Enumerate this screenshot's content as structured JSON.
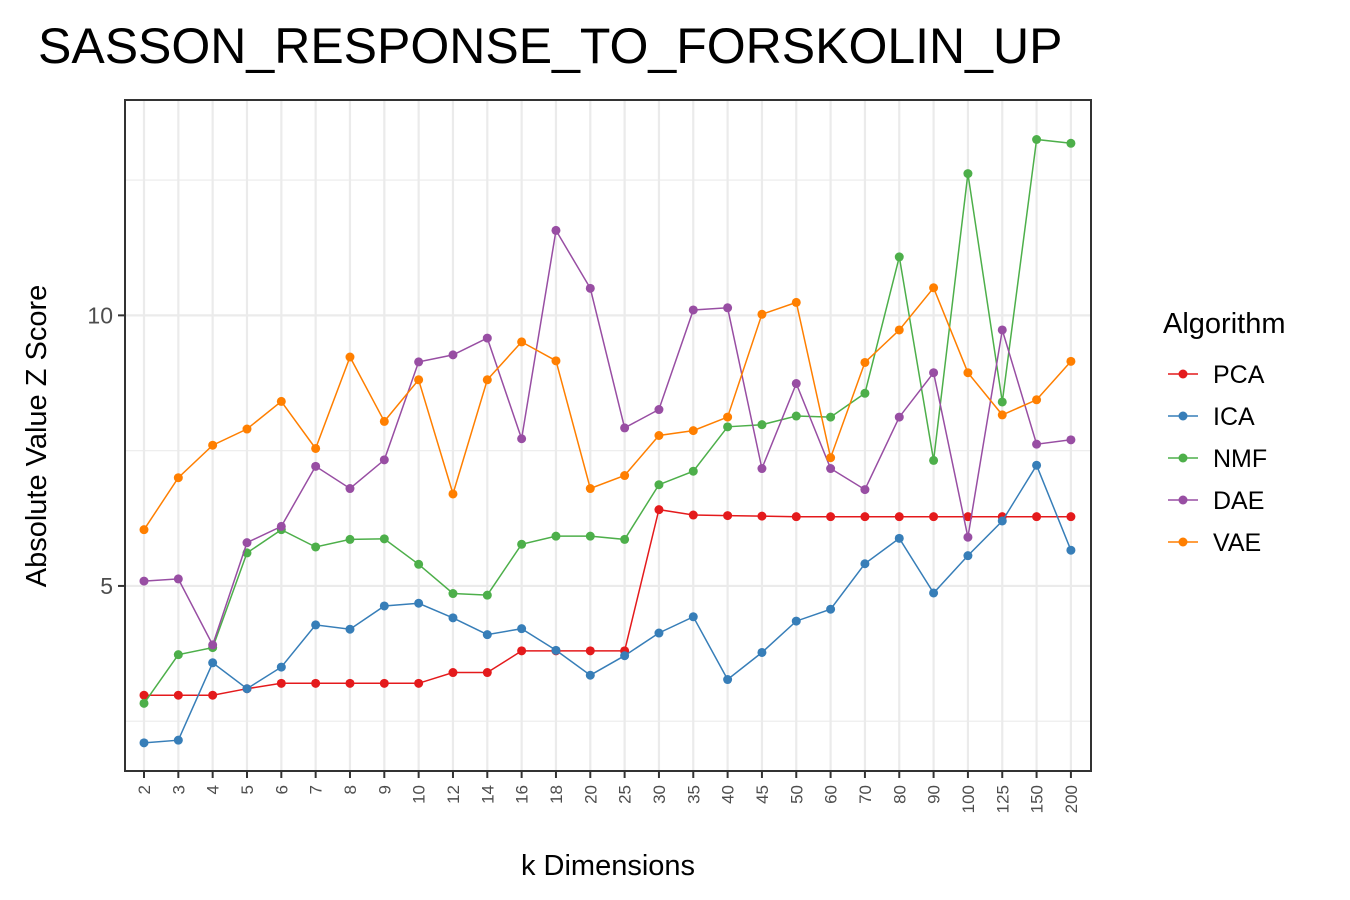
{
  "chart_data": {
    "type": "line",
    "title": "SASSON_RESPONSE_TO_FORSKOLIN_UP",
    "xlabel": "k Dimensions",
    "ylabel": "Absolute Value Z Score",
    "categories": [
      "2",
      "3",
      "4",
      "5",
      "6",
      "7",
      "8",
      "9",
      "10",
      "12",
      "14",
      "16",
      "18",
      "20",
      "25",
      "30",
      "35",
      "40",
      "45",
      "50",
      "60",
      "70",
      "80",
      "90",
      "100",
      "125",
      "150",
      "200"
    ],
    "y_ticks": [
      5,
      10
    ],
    "ylim": [
      1.58,
      13.98
    ],
    "grid": true,
    "legend": {
      "title": "Algorithm",
      "position": "right"
    },
    "series": [
      {
        "name": "PCA",
        "color": "#e41a1c",
        "values": [
          2.98,
          2.98,
          2.98,
          3.1,
          3.2,
          3.2,
          3.2,
          3.2,
          3.2,
          3.4,
          3.4,
          3.8,
          3.8,
          3.8,
          3.8,
          6.41,
          6.31,
          6.3,
          6.29,
          6.28,
          6.28,
          6.28,
          6.28,
          6.28,
          6.28,
          6.28,
          6.28,
          6.28
        ]
      },
      {
        "name": "ICA",
        "color": "#377eb8",
        "values": [
          2.1,
          2.15,
          3.58,
          3.1,
          3.5,
          4.28,
          4.2,
          4.63,
          4.68,
          4.41,
          4.1,
          4.21,
          3.81,
          3.35,
          3.71,
          4.13,
          4.43,
          3.27,
          3.77,
          4.35,
          4.57,
          5.41,
          5.88,
          4.87,
          5.56,
          6.2,
          7.23,
          5.66
        ]
      },
      {
        "name": "NMF",
        "color": "#4daf4a",
        "values": [
          2.83,
          3.73,
          3.86,
          5.61,
          6.04,
          5.72,
          5.86,
          5.87,
          5.4,
          4.86,
          4.83,
          5.77,
          5.92,
          5.92,
          5.86,
          6.87,
          7.12,
          7.94,
          7.98,
          8.14,
          8.12,
          8.56,
          11.08,
          7.32,
          12.62,
          8.4,
          13.25,
          13.18
        ]
      },
      {
        "name": "DAE",
        "color": "#984ea3",
        "values": [
          5.09,
          5.13,
          3.91,
          5.8,
          6.1,
          7.21,
          6.8,
          7.33,
          9.14,
          9.27,
          9.58,
          7.72,
          11.57,
          10.5,
          7.92,
          8.26,
          10.1,
          10.14,
          7.17,
          8.74,
          7.17,
          6.78,
          8.12,
          8.94,
          5.9,
          9.73,
          7.62,
          7.7
        ]
      },
      {
        "name": "VAE",
        "color": "#ff7f00",
        "values": [
          6.04,
          7.0,
          7.6,
          7.9,
          8.41,
          7.54,
          9.23,
          8.04,
          8.81,
          6.7,
          8.81,
          9.51,
          9.16,
          6.8,
          7.04,
          7.78,
          7.87,
          8.12,
          10.02,
          10.24,
          7.37,
          9.13,
          9.73,
          10.51,
          8.94,
          8.16,
          8.44,
          9.15
        ]
      }
    ]
  }
}
